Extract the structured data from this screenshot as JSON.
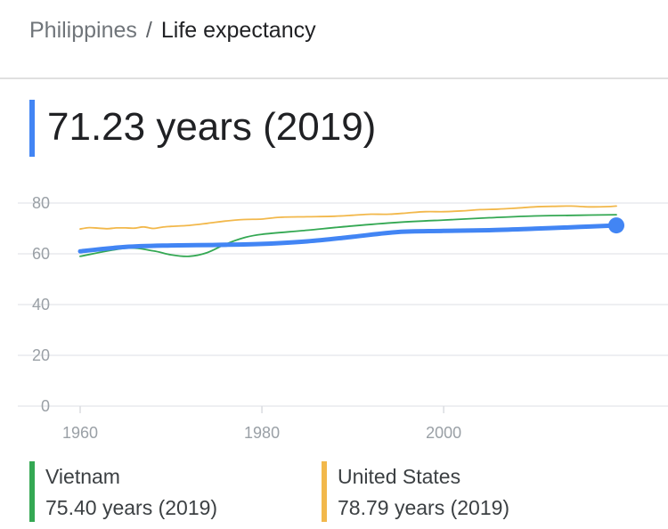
{
  "breadcrumb": {
    "parent": "Philippines",
    "separator": "/",
    "current": "Life expectancy"
  },
  "headline": {
    "value": "71.23 years (2019)",
    "accent_color": "#4285f4"
  },
  "chart_data": {
    "type": "line",
    "title": "",
    "xlabel": "",
    "ylabel": "",
    "xlim": [
      1960,
      2019
    ],
    "ylim": [
      0,
      80
    ],
    "x_ticks": [
      1960,
      1980,
      2000
    ],
    "y_ticks": [
      0,
      20,
      40,
      60,
      80
    ],
    "grid": true,
    "series": [
      {
        "name": "Philippines",
        "color": "#4285f4",
        "x": [
          1960,
          1965,
          1970,
          1975,
          1980,
          1985,
          1990,
          1995,
          2000,
          2005,
          2010,
          2015,
          2019
        ],
        "values": [
          61.0,
          62.7,
          63.3,
          63.5,
          63.9,
          64.9,
          66.7,
          68.6,
          69.0,
          69.3,
          69.9,
          70.6,
          71.2
        ]
      },
      {
        "name": "Vietnam",
        "color": "#34a853",
        "x": [
          1960,
          1965,
          1968,
          1970,
          1972,
          1974,
          1976,
          1978,
          1980,
          1985,
          1990,
          1995,
          2000,
          2005,
          2010,
          2015,
          2019
        ],
        "values": [
          59.0,
          62.2,
          61.2,
          59.6,
          59.0,
          60.5,
          63.8,
          66.3,
          67.7,
          69.3,
          71.0,
          72.4,
          73.3,
          74.2,
          74.9,
          75.2,
          75.4
        ]
      },
      {
        "name": "United States",
        "color": "#f2b84b",
        "x": [
          1960,
          1961,
          1962,
          1963,
          1964,
          1965,
          1966,
          1967,
          1968,
          1969,
          1970,
          1972,
          1974,
          1976,
          1978,
          1980,
          1982,
          1985,
          1988,
          1990,
          1992,
          1994,
          1996,
          1998,
          2000,
          2002,
          2004,
          2006,
          2008,
          2010,
          2012,
          2014,
          2016,
          2018,
          2019
        ],
        "values": [
          69.8,
          70.3,
          70.1,
          69.9,
          70.2,
          70.2,
          70.1,
          70.6,
          70.0,
          70.5,
          70.8,
          71.2,
          72.0,
          72.9,
          73.5,
          73.7,
          74.4,
          74.6,
          74.8,
          75.2,
          75.6,
          75.6,
          76.1,
          76.6,
          76.6,
          76.9,
          77.4,
          77.6,
          78.0,
          78.5,
          78.7,
          78.8,
          78.5,
          78.6,
          78.79
        ]
      }
    ]
  },
  "legend": [
    {
      "name": "Vietnam",
      "value": "75.40 years (2019)",
      "color": "#34a853"
    },
    {
      "name": "United States",
      "value": "78.79 years (2019)",
      "color": "#f2b84b"
    }
  ]
}
